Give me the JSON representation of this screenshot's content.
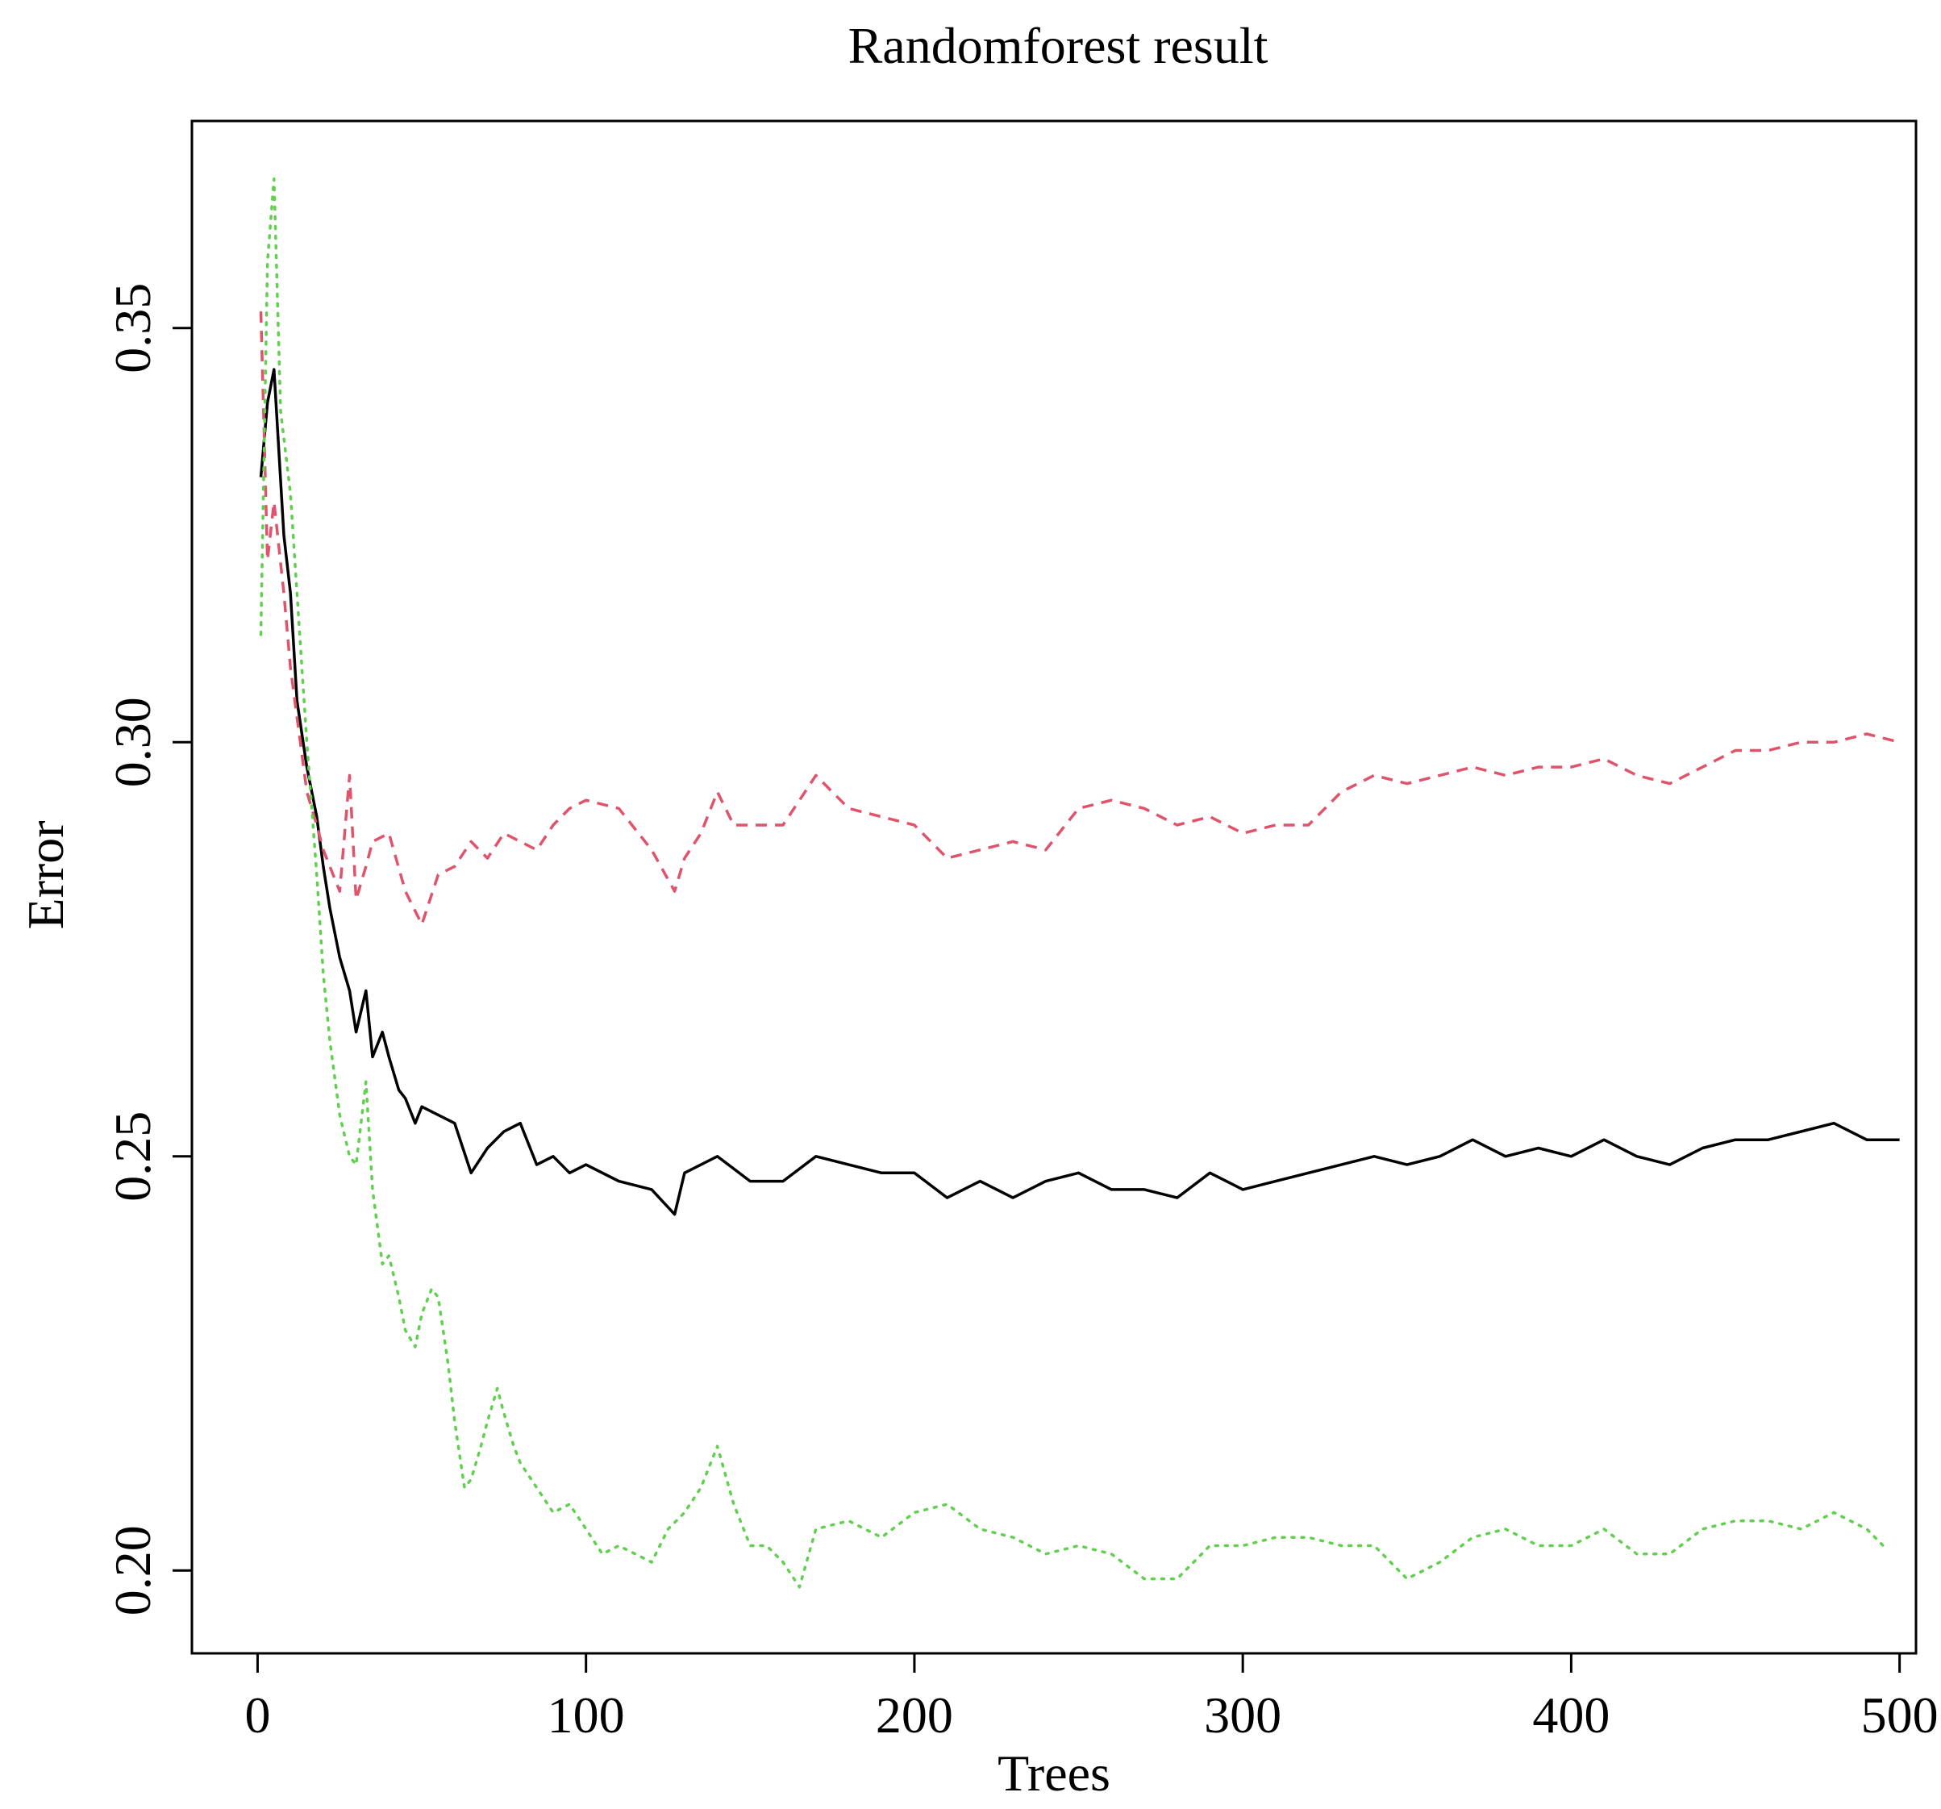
{
  "chart_data": {
    "type": "line",
    "title": "Randomforest result",
    "xlabel": "Trees",
    "ylabel": "Error",
    "xlim": [
      -20,
      505
    ],
    "ylim": [
      0.19,
      0.375
    ],
    "xticks": [
      0,
      100,
      200,
      300,
      400,
      500
    ],
    "xtick_labels": [
      "0",
      "100",
      "200",
      "300",
      "400",
      "500"
    ],
    "yticks": [
      0.2,
      0.25,
      0.3,
      0.35
    ],
    "ytick_labels": [
      "0.20",
      "0.25",
      "0.30",
      "0.35"
    ],
    "grid": false,
    "series": [
      {
        "style": "solid",
        "color": "#000000",
        "x": [
          1,
          3,
          5,
          8,
          10,
          12,
          15,
          18,
          20,
          22,
          25,
          28,
          30,
          33,
          35,
          38,
          40,
          43,
          45,
          48,
          50,
          55,
          60,
          65,
          70,
          75,
          80,
          85,
          90,
          95,
          100,
          110,
          120,
          127,
          130,
          140,
          150,
          160,
          170,
          180,
          190,
          200,
          210,
          220,
          230,
          240,
          250,
          260,
          270,
          280,
          290,
          300,
          310,
          320,
          330,
          340,
          350,
          360,
          370,
          380,
          390,
          400,
          410,
          420,
          430,
          440,
          450,
          460,
          470,
          480,
          490,
          500
        ],
        "y": [
          0.332,
          0.341,
          0.345,
          0.325,
          0.318,
          0.305,
          0.297,
          0.291,
          0.285,
          0.28,
          0.274,
          0.27,
          0.265,
          0.27,
          0.262,
          0.265,
          0.262,
          0.258,
          0.257,
          0.254,
          0.256,
          0.255,
          0.254,
          0.248,
          0.251,
          0.253,
          0.254,
          0.249,
          0.25,
          0.248,
          0.249,
          0.247,
          0.246,
          0.243,
          0.248,
          0.25,
          0.247,
          0.247,
          0.25,
          0.249,
          0.248,
          0.248,
          0.245,
          0.247,
          0.245,
          0.247,
          0.248,
          0.246,
          0.246,
          0.245,
          0.248,
          0.246,
          0.247,
          0.248,
          0.249,
          0.25,
          0.249,
          0.25,
          0.252,
          0.25,
          0.251,
          0.25,
          0.252,
          0.25,
          0.249,
          0.251,
          0.252,
          0.252,
          0.253,
          0.254,
          0.252,
          0.252
        ]
      },
      {
        "style": "dashed",
        "color": "#DF536B",
        "x": [
          1,
          3,
          5,
          8,
          10,
          13,
          15,
          18,
          20,
          23,
          25,
          28,
          30,
          33,
          35,
          40,
          45,
          50,
          55,
          60,
          65,
          70,
          75,
          80,
          85,
          90,
          95,
          100,
          110,
          120,
          127,
          130,
          135,
          140,
          145,
          150,
          160,
          170,
          180,
          190,
          200,
          210,
          220,
          230,
          240,
          250,
          260,
          270,
          280,
          290,
          300,
          310,
          320,
          330,
          340,
          350,
          360,
          370,
          380,
          390,
          400,
          410,
          420,
          430,
          440,
          450,
          460,
          470,
          480,
          490,
          500
        ],
        "y": [
          0.352,
          0.322,
          0.329,
          0.318,
          0.309,
          0.3,
          0.294,
          0.29,
          0.287,
          0.284,
          0.282,
          0.296,
          0.281,
          0.285,
          0.288,
          0.289,
          0.282,
          0.278,
          0.284,
          0.285,
          0.288,
          0.286,
          0.289,
          0.288,
          0.287,
          0.29,
          0.292,
          0.293,
          0.292,
          0.287,
          0.282,
          0.286,
          0.289,
          0.294,
          0.29,
          0.29,
          0.29,
          0.296,
          0.292,
          0.291,
          0.29,
          0.286,
          0.287,
          0.288,
          0.287,
          0.292,
          0.293,
          0.292,
          0.29,
          0.291,
          0.289,
          0.29,
          0.29,
          0.294,
          0.296,
          0.295,
          0.296,
          0.297,
          0.296,
          0.297,
          0.297,
          0.298,
          0.296,
          0.295,
          0.297,
          0.299,
          0.299,
          0.3,
          0.3,
          0.301,
          0.3
        ]
      },
      {
        "style": "dotted",
        "color": "#61D04F",
        "x": [
          1,
          3,
          5,
          7,
          10,
          12,
          15,
          18,
          20,
          22,
          25,
          28,
          30,
          33,
          35,
          38,
          40,
          43,
          45,
          48,
          50,
          53,
          55,
          58,
          60,
          63,
          65,
          68,
          70,
          73,
          75,
          78,
          80,
          85,
          90,
          95,
          100,
          105,
          110,
          115,
          120,
          125,
          130,
          135,
          140,
          145,
          150,
          155,
          160,
          165,
          170,
          180,
          190,
          200,
          210,
          220,
          230,
          240,
          250,
          260,
          270,
          280,
          290,
          300,
          310,
          320,
          330,
          340,
          350,
          360,
          370,
          380,
          390,
          400,
          410,
          420,
          430,
          440,
          450,
          460,
          470,
          480,
          490,
          495
        ],
        "y": [
          0.313,
          0.358,
          0.368,
          0.34,
          0.33,
          0.318,
          0.3,
          0.284,
          0.272,
          0.264,
          0.255,
          0.25,
          0.249,
          0.259,
          0.246,
          0.237,
          0.238,
          0.233,
          0.229,
          0.227,
          0.231,
          0.234,
          0.233,
          0.225,
          0.218,
          0.21,
          0.211,
          0.215,
          0.218,
          0.222,
          0.219,
          0.215,
          0.213,
          0.21,
          0.207,
          0.208,
          0.205,
          0.202,
          0.203,
          0.202,
          0.201,
          0.205,
          0.207,
          0.21,
          0.215,
          0.208,
          0.203,
          0.203,
          0.201,
          0.198,
          0.205,
          0.206,
          0.204,
          0.207,
          0.208,
          0.205,
          0.204,
          0.202,
          0.203,
          0.202,
          0.199,
          0.199,
          0.203,
          0.203,
          0.204,
          0.204,
          0.203,
          0.203,
          0.199,
          0.201,
          0.204,
          0.205,
          0.203,
          0.203,
          0.205,
          0.202,
          0.202,
          0.205,
          0.206,
          0.206,
          0.205,
          0.207,
          0.205,
          0.203
        ]
      }
    ]
  }
}
